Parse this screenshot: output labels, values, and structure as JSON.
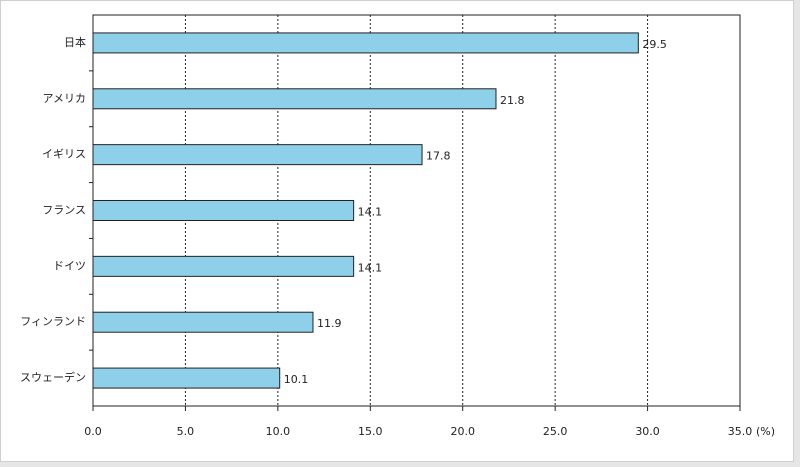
{
  "chart_data": {
    "type": "hbar",
    "categories": [
      "日本",
      "アメリカ",
      "イギリス",
      "フランス",
      "ドイツ",
      "フィンランド",
      "スウェーデン"
    ],
    "values": [
      29.5,
      21.8,
      17.8,
      14.1,
      14.1,
      11.9,
      10.1
    ],
    "color": "#8ecfe9",
    "xlim": [
      0,
      35
    ],
    "xticks": [
      {
        "value": 0,
        "label": "0.0"
      },
      {
        "value": 5,
        "label": "5.0"
      },
      {
        "value": 10,
        "label": "10.0"
      },
      {
        "value": 15,
        "label": "15.0"
      },
      {
        "value": 20,
        "label": "20.0"
      },
      {
        "value": 25,
        "label": "25.0"
      },
      {
        "value": 30,
        "label": "30.0"
      },
      {
        "value": 35,
        "label": "35.0"
      }
    ],
    "x_unit": "(%)",
    "grid": true
  }
}
